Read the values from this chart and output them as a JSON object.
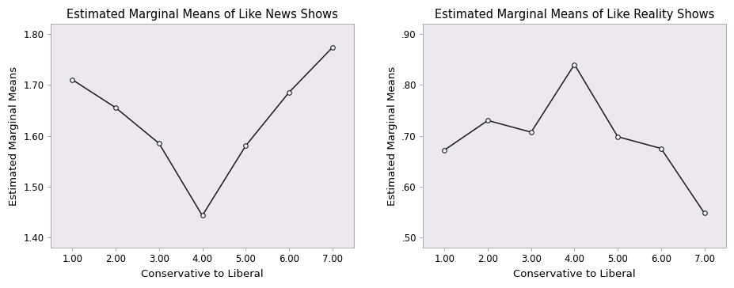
{
  "chart1": {
    "title": "Estimated Marginal Means of Like News Shows",
    "xlabel": "Conservative to Liberal",
    "ylabel": "Estimated Marginal Means",
    "x": [
      1,
      2,
      3,
      4,
      5,
      6,
      7
    ],
    "y": [
      1.71,
      1.655,
      1.585,
      1.443,
      1.58,
      1.685,
      1.773
    ],
    "ylim": [
      1.38,
      1.82
    ],
    "yticks": [
      1.4,
      1.5,
      1.6,
      1.7,
      1.8
    ],
    "ytick_labels": [
      "1.40",
      "1.50",
      "1.60",
      "1.70",
      "1.80"
    ],
    "xticks": [
      1.0,
      2.0,
      3.0,
      4.0,
      5.0,
      6.0,
      7.0
    ],
    "xtick_labels": [
      "1.00",
      "2.00",
      "3.00",
      "4.00",
      "5.00",
      "6.00",
      "7.00"
    ],
    "xlim": [
      0.5,
      7.5
    ]
  },
  "chart2": {
    "title": "Estimated Marginal Means of Like Reality Shows",
    "xlabel": "Conservative to Liberal",
    "ylabel": "Estimated Marginal Means",
    "x": [
      1,
      2,
      3,
      4,
      5,
      6,
      7
    ],
    "y": [
      0.672,
      0.73,
      0.707,
      0.84,
      0.698,
      0.675,
      0.548
    ],
    "ylim": [
      0.48,
      0.92
    ],
    "yticks": [
      0.5,
      0.6,
      0.7,
      0.8,
      0.9
    ],
    "ytick_labels": [
      ".50",
      ".60",
      ".70",
      ".80",
      ".90"
    ],
    "xticks": [
      1.0,
      2.0,
      3.0,
      4.0,
      5.0,
      6.0,
      7.0
    ],
    "xtick_labels": [
      "1.00",
      "2.00",
      "3.00",
      "4.00",
      "5.00",
      "6.00",
      "7.00"
    ],
    "xlim": [
      0.5,
      7.5
    ]
  },
  "fig_bg_color": "#ffffff",
  "plot_bg_color": "#ede8f0",
  "line_color": "#1a1a1a",
  "marker": "o",
  "marker_facecolor": "white",
  "marker_edgecolor": "#1a1a1a",
  "marker_size": 4,
  "linewidth": 1.1,
  "title_fontsize": 10.5,
  "label_fontsize": 9.5,
  "tick_fontsize": 8.5,
  "spine_color": "#aaaaaa",
  "tick_color": "#555555"
}
